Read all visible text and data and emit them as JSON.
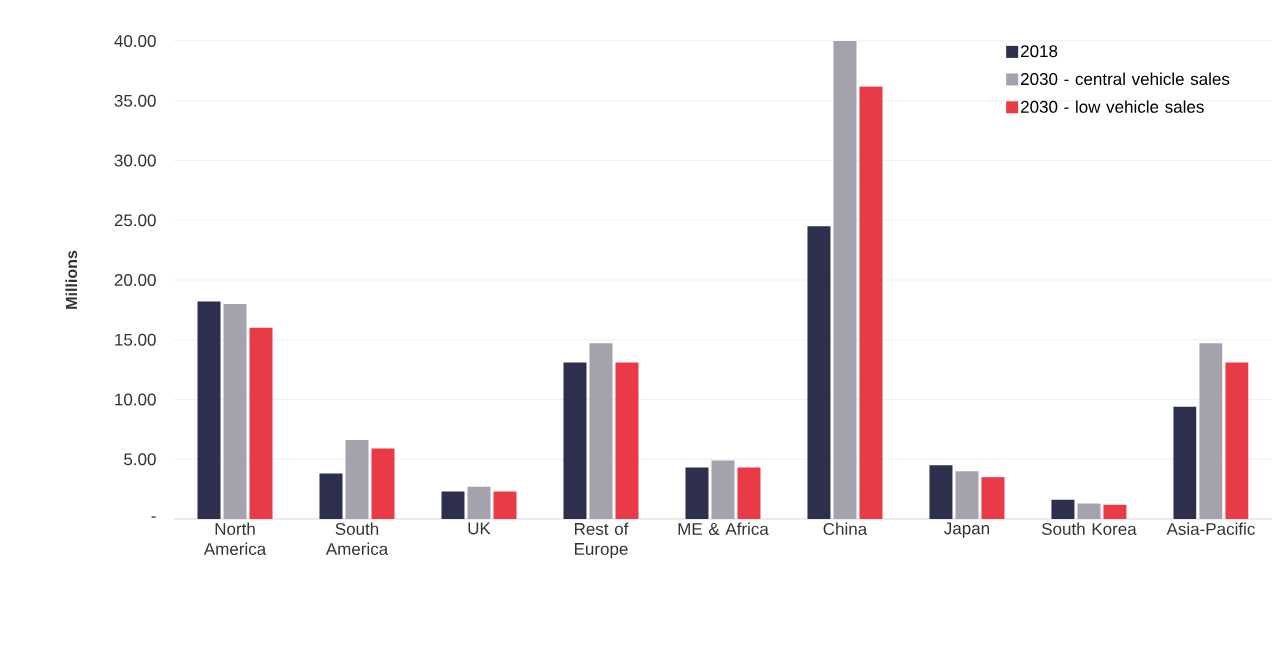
{
  "chart_data": {
    "type": "bar",
    "ylabel": "Millions",
    "categories": [
      "North America",
      "South America",
      "UK",
      "Rest of Europe",
      "ME & Africa",
      "China",
      "Japan",
      "South Korea",
      "Asia-Pacific"
    ],
    "series": [
      {
        "name": "2018",
        "color": "#2d2f4d",
        "values": [
          18.2,
          3.8,
          2.3,
          13.1,
          4.3,
          24.5,
          4.5,
          1.6,
          9.4
        ]
      },
      {
        "name": "2030 - central vehicle sales",
        "color": "#a4a3ad",
        "values": [
          18.0,
          6.6,
          2.7,
          14.7,
          4.9,
          40.0,
          4.0,
          1.3,
          14.7
        ]
      },
      {
        "name": "2030 - low vehicle sales",
        "color": "#e83a47",
        "values": [
          16.0,
          5.9,
          2.3,
          13.1,
          4.3,
          36.2,
          3.5,
          1.2,
          13.1
        ]
      }
    ],
    "ylim": [
      0,
      40
    ],
    "yticks": [
      {
        "value": 0,
        "label": "-"
      },
      {
        "value": 5,
        "label": "5.00"
      },
      {
        "value": 10,
        "label": "10.00"
      },
      {
        "value": 15,
        "label": "15.00"
      },
      {
        "value": 20,
        "label": "20.00"
      },
      {
        "value": 25,
        "label": "25.00"
      },
      {
        "value": 30,
        "label": "30.00"
      },
      {
        "value": 35,
        "label": "35.00"
      },
      {
        "value": 40,
        "label": "40.00"
      }
    ],
    "grid": "y",
    "legend": "top right"
  }
}
